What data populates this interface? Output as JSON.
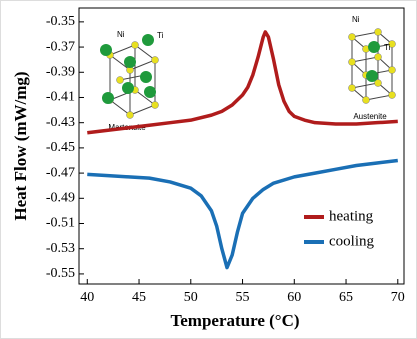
{
  "chart_data": {
    "type": "line",
    "x_label": "Temperature (°C)",
    "y_label": "Heat Flow (mW/mg)",
    "xlim": [
      39.2,
      70.6
    ],
    "ylim": [
      -0.558,
      -0.339
    ],
    "xticks": [
      40,
      45,
      50,
      55,
      60,
      65,
      70
    ],
    "yticks": [
      -0.35,
      -0.37,
      -0.39,
      -0.41,
      -0.43,
      -0.45,
      -0.47,
      -0.49,
      -0.51,
      -0.53,
      -0.55
    ],
    "legend": "lower right",
    "series": [
      {
        "name": "heating",
        "color": "#b01c1c",
        "x": [
          40,
          42,
          44,
          46,
          48,
          50,
          52,
          53,
          54,
          55,
          55.5,
          56,
          56.5,
          57,
          57.2,
          57.5,
          58,
          58.5,
          59,
          59.5,
          60,
          61,
          62,
          64,
          66,
          68,
          70
        ],
        "values": [
          -0.438,
          -0.436,
          -0.434,
          -0.432,
          -0.43,
          -0.428,
          -0.424,
          -0.421,
          -0.416,
          -0.408,
          -0.402,
          -0.392,
          -0.378,
          -0.362,
          -0.358,
          -0.362,
          -0.38,
          -0.4,
          -0.413,
          -0.421,
          -0.425,
          -0.428,
          -0.43,
          -0.431,
          -0.431,
          -0.43,
          -0.429
        ]
      },
      {
        "name": "cooling",
        "color": "#1a6fb5",
        "x": [
          40,
          42,
          44,
          46,
          48,
          50,
          51,
          52,
          52.5,
          53,
          53.5,
          54,
          54.5,
          55,
          56,
          57,
          58,
          60,
          62,
          64,
          66,
          68,
          70
        ],
        "values": [
          -0.471,
          -0.472,
          -0.473,
          -0.474,
          -0.477,
          -0.482,
          -0.488,
          -0.5,
          -0.512,
          -0.53,
          -0.545,
          -0.535,
          -0.517,
          -0.502,
          -0.49,
          -0.483,
          -0.478,
          -0.473,
          -0.47,
          -0.467,
          -0.464,
          -0.462,
          -0.46
        ]
      }
    ],
    "insets": [
      {
        "labels": [
          "Ni",
          "Ti"
        ],
        "caption": "Martensite"
      },
      {
        "labels": [
          "Ni",
          "Ti"
        ],
        "caption": "Austenite"
      }
    ]
  }
}
